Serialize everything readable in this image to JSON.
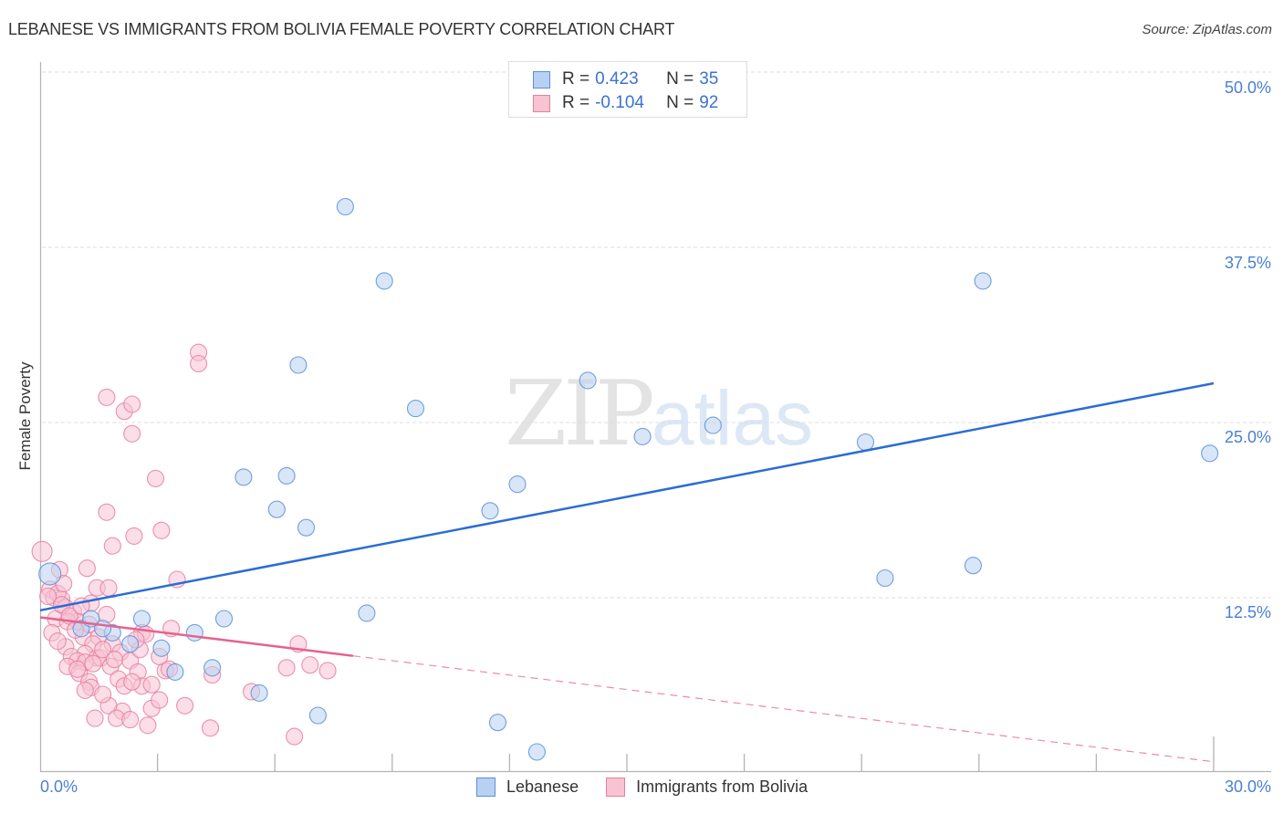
{
  "header": {
    "title": "LEBANESE VS IMMIGRANTS FROM BOLIVIA FEMALE POVERTY CORRELATION CHART",
    "source": "Source: ZipAtlas.com"
  },
  "watermark": {
    "zip": "ZIP",
    "atlas": "atlas"
  },
  "legend_top": {
    "rows": [
      {
        "r_label": "R =",
        "r_value": "0.423",
        "n_label": "N =",
        "n_value": "35"
      },
      {
        "r_label": "R =",
        "r_value": "-0.104",
        "n_label": "N =",
        "n_value": "92"
      }
    ]
  },
  "legend_bottom": {
    "items": [
      {
        "label": "Lebanese"
      },
      {
        "label": "Immigrants from Bolivia"
      }
    ]
  },
  "axes": {
    "ylabel": "Female Poverty",
    "y_ticks": [
      "50.0%",
      "37.5%",
      "25.0%",
      "12.5%"
    ],
    "x_ticks": [
      "0.0%",
      "30.0%"
    ]
  },
  "colors": {
    "lebanese_fill": "#b8d1f3",
    "lebanese_stroke": "#5b8fd9",
    "lebanese_line": "#2a6dd4",
    "bolivia_fill": "#f8c3d3",
    "bolivia_stroke": "#e67fa0",
    "bolivia_line": "#e8618c",
    "tick_label": "#4a7fd4"
  },
  "chart_data": {
    "type": "scatter",
    "title": "LEBANESE VS IMMIGRANTS FROM BOLIVIA FEMALE POVERTY CORRELATION CHART",
    "xlabel": "",
    "ylabel": "Female Poverty",
    "xlim": [
      0,
      30
    ],
    "ylim": [
      0,
      50
    ],
    "x_ticks": [
      0,
      30
    ],
    "y_ticks": [
      12.5,
      25.0,
      37.5,
      50.0
    ],
    "grid": "horizontal dashed",
    "legend_position": "top-center and bottom",
    "series": [
      {
        "name": "Lebanese",
        "R": 0.423,
        "N": 35,
        "trend": {
          "x": [
            0,
            30
          ],
          "y": [
            11.6,
            27.8
          ],
          "style": "solid"
        },
        "points": [
          [
            0.25,
            14.2,
            12
          ],
          [
            7.8,
            40.4
          ],
          [
            8.8,
            35.1
          ],
          [
            6.6,
            29.1
          ],
          [
            9.6,
            26.0
          ],
          [
            14.0,
            28.0
          ],
          [
            5.2,
            21.1
          ],
          [
            6.3,
            21.2
          ],
          [
            6.05,
            18.8
          ],
          [
            6.8,
            17.5
          ],
          [
            11.5,
            18.7
          ],
          [
            12.2,
            20.6
          ],
          [
            15.4,
            24.0
          ],
          [
            17.2,
            24.8
          ],
          [
            21.1,
            23.6
          ],
          [
            24.1,
            35.1
          ],
          [
            29.9,
            22.8
          ],
          [
            21.6,
            13.9
          ],
          [
            23.85,
            14.8
          ],
          [
            2.6,
            11.0
          ],
          [
            4.7,
            11.0
          ],
          [
            3.95,
            10.0
          ],
          [
            3.1,
            8.9
          ],
          [
            3.45,
            7.2
          ],
          [
            4.4,
            7.5
          ],
          [
            5.6,
            5.7
          ],
          [
            7.1,
            4.1
          ],
          [
            8.35,
            11.4
          ],
          [
            11.7,
            3.6
          ],
          [
            12.7,
            1.5
          ],
          [
            1.05,
            10.3
          ],
          [
            1.85,
            10.0
          ],
          [
            1.6,
            10.3
          ],
          [
            2.3,
            9.2
          ],
          [
            1.3,
            11.0
          ]
        ]
      },
      {
        "name": "Immigrants from Bolivia",
        "R": -0.104,
        "N": 92,
        "trend": {
          "x": [
            0,
            30
          ],
          "y": [
            11.1,
            0.8
          ],
          "solid_until_x": 8.0,
          "style": "solid then dashed"
        },
        "points": [
          [
            0.05,
            15.8,
            11
          ],
          [
            4.05,
            30.0
          ],
          [
            4.05,
            29.2
          ],
          [
            1.7,
            26.8
          ],
          [
            2.15,
            25.8
          ],
          [
            2.35,
            26.3
          ],
          [
            2.35,
            24.2
          ],
          [
            2.95,
            21.0
          ],
          [
            1.7,
            18.6
          ],
          [
            1.85,
            16.2
          ],
          [
            2.4,
            16.9
          ],
          [
            3.1,
            17.3
          ],
          [
            1.2,
            14.6
          ],
          [
            0.5,
            14.5
          ],
          [
            1.45,
            13.2
          ],
          [
            1.75,
            13.2
          ],
          [
            3.5,
            13.8
          ],
          [
            0.25,
            13.1
          ],
          [
            0.35,
            12.5
          ],
          [
            0.55,
            12.4
          ],
          [
            0.65,
            11.8
          ],
          [
            0.85,
            11.5
          ],
          [
            0.4,
            11.0
          ],
          [
            0.95,
            10.8
          ],
          [
            1.3,
            12.1
          ],
          [
            1.7,
            11.3
          ],
          [
            0.3,
            10.0
          ],
          [
            0.7,
            10.8
          ],
          [
            1.1,
            9.7
          ],
          [
            1.5,
            9.7
          ],
          [
            1.85,
            9.2
          ],
          [
            2.6,
            10.0
          ],
          [
            2.7,
            9.9
          ],
          [
            2.05,
            8.6
          ],
          [
            1.35,
            9.2
          ],
          [
            1.15,
            8.5
          ],
          [
            1.45,
            8.2
          ],
          [
            1.55,
            8.2
          ],
          [
            0.65,
            9.0
          ],
          [
            0.8,
            8.3
          ],
          [
            0.95,
            8.0
          ],
          [
            1.15,
            7.9
          ],
          [
            0.7,
            7.6
          ],
          [
            1.0,
            7.1
          ],
          [
            1.8,
            7.6
          ],
          [
            2.3,
            8.0
          ],
          [
            2.5,
            7.2
          ],
          [
            2.55,
            8.8
          ],
          [
            3.2,
            7.3
          ],
          [
            3.3,
            7.4
          ],
          [
            2.0,
            6.7
          ],
          [
            2.15,
            6.2
          ],
          [
            2.6,
            6.2
          ],
          [
            2.35,
            6.5
          ],
          [
            1.25,
            6.5
          ],
          [
            1.3,
            6.1
          ],
          [
            1.15,
            5.9
          ],
          [
            2.85,
            6.3
          ],
          [
            4.4,
            7.0
          ],
          [
            5.4,
            5.8
          ],
          [
            6.3,
            7.5
          ],
          [
            6.6,
            9.2
          ],
          [
            6.9,
            7.7
          ],
          [
            7.35,
            7.3
          ],
          [
            3.35,
            10.3
          ],
          [
            2.1,
            4.4
          ],
          [
            1.75,
            4.8
          ],
          [
            2.85,
            4.6
          ],
          [
            3.05,
            5.2
          ],
          [
            3.7,
            4.8
          ],
          [
            2.75,
            3.4
          ],
          [
            4.35,
            3.2
          ],
          [
            6.5,
            2.6
          ],
          [
            1.4,
            3.9
          ],
          [
            1.95,
            3.9
          ],
          [
            2.3,
            3.8
          ],
          [
            1.6,
            5.6
          ],
          [
            0.45,
            12.8
          ],
          [
            0.6,
            13.5
          ],
          [
            0.55,
            12.0
          ],
          [
            0.2,
            12.6
          ],
          [
            0.75,
            11.2
          ],
          [
            1.05,
            11.9
          ],
          [
            1.25,
            10.6
          ],
          [
            0.9,
            10.2
          ],
          [
            0.45,
            9.4
          ],
          [
            1.6,
            8.8
          ],
          [
            2.45,
            9.5
          ],
          [
            3.05,
            8.3
          ],
          [
            0.95,
            7.4
          ],
          [
            1.35,
            7.8
          ],
          [
            1.9,
            8.1
          ]
        ]
      }
    ]
  }
}
